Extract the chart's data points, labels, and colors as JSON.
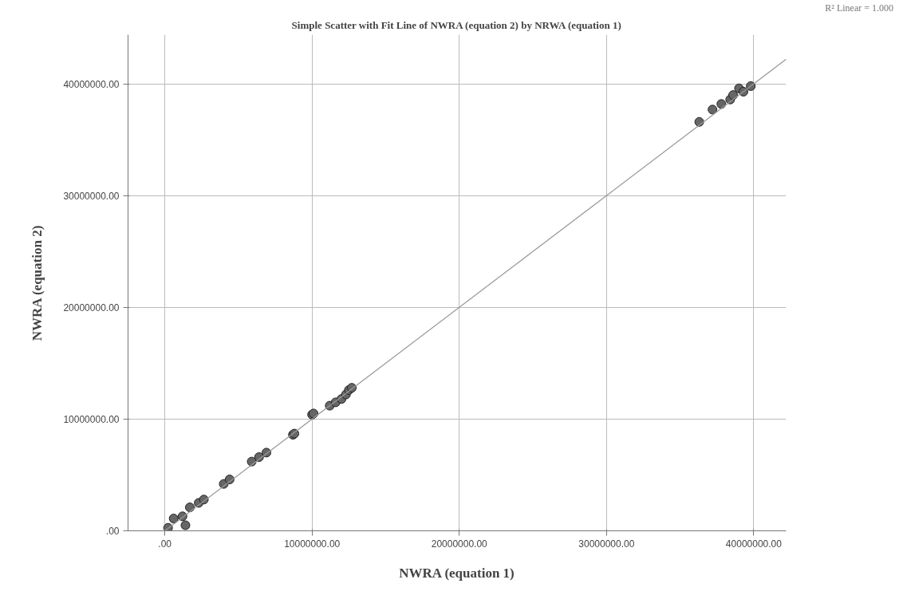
{
  "chart_data": {
    "type": "scatter",
    "title": "Simple Scatter with Fit Line of NWRA (equation 2) by NRWA (equation 1)",
    "xlabel": "NWRA (equation 1)",
    "ylabel": "NWRA (equation 2)",
    "series": [
      {
        "type": "scatter",
        "color": "#666666",
        "marker": "circle",
        "x": [
          220000,
          600000,
          1400000,
          1200000,
          1700000,
          2300000,
          2650000,
          4000000,
          4400000,
          5900000,
          6400000,
          6900000,
          8700000,
          8800000,
          10000000,
          10100000,
          11200000,
          11600000,
          12000000,
          12300000,
          12500000,
          12700000,
          36300000,
          37200000,
          37800000,
          38400000,
          38600000,
          39000000,
          39300000,
          39800000
        ],
        "values": [
          270000,
          1100000,
          500000,
          1300000,
          2100000,
          2500000,
          2800000,
          4200000,
          4600000,
          6200000,
          6600000,
          7000000,
          8600000,
          8700000,
          10400000,
          10500000,
          11200000,
          11500000,
          11800000,
          12200000,
          12600000,
          12800000,
          36600000,
          37700000,
          38200000,
          38600000,
          39000000,
          39600000,
          39300000,
          39800000
        ]
      },
      {
        "type": "line",
        "color": "#999999",
        "x": [
          0,
          42200000
        ],
        "values": [
          0,
          42200000
        ]
      }
    ],
    "xlim": [
      -2500000,
      42200000
    ],
    "ylim": [
      0,
      44400000
    ],
    "xticks": [
      {
        "value": 0,
        "label": ".00"
      },
      {
        "value": 10000000,
        "label": "10000000.00"
      },
      {
        "value": 20000000,
        "label": "20000000.00"
      },
      {
        "value": 30000000,
        "label": "30000000.00"
      },
      {
        "value": 40000000,
        "label": "40000000.00"
      }
    ],
    "yticks": [
      {
        "value": 0,
        "label": ".00"
      },
      {
        "value": 10000000,
        "label": "10000000.00"
      },
      {
        "value": 20000000,
        "label": "20000000.00"
      },
      {
        "value": 30000000,
        "label": "30000000.00"
      },
      {
        "value": 40000000,
        "label": "40000000.00"
      }
    ],
    "annotations": [
      "R² Linear = 1.000"
    ],
    "grid": true,
    "line_style": "solid"
  }
}
